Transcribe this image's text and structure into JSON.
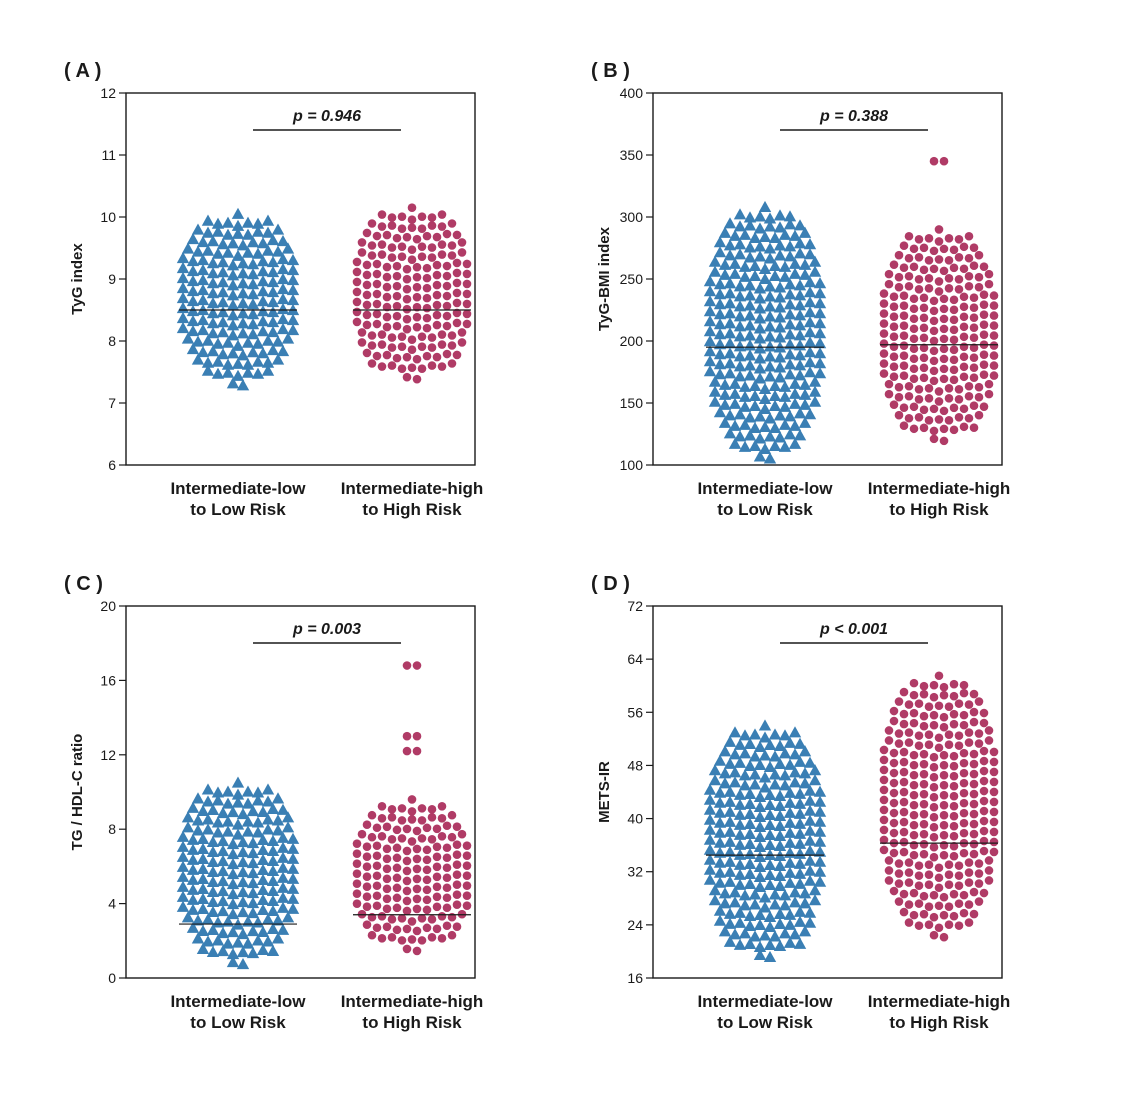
{
  "colors": {
    "group1": "#3a7fb4",
    "group2": "#b03b66",
    "axis": "#1a1a1a"
  },
  "chart_data": [
    {
      "type": "scatter",
      "panel_label": "( A )",
      "ylabel": "TyG index",
      "ylim": [
        6,
        12
      ],
      "yticks": [
        6,
        7,
        8,
        9,
        10,
        11,
        12
      ],
      "p_value": "p = 0.946",
      "categories": [
        {
          "line1": "Intermediate-low",
          "line2": "to Low Risk"
        },
        {
          "line1": "Intermediate-high",
          "line2": "to High Risk"
        }
      ],
      "series": [
        {
          "marker": "triangle",
          "min": 7.3,
          "max": 10.05,
          "median": 8.5,
          "outliers": []
        },
        {
          "marker": "circle",
          "min": 7.25,
          "max": 10.15,
          "median": 8.5,
          "outliers": []
        }
      ]
    },
    {
      "type": "scatter",
      "panel_label": "( B )",
      "ylabel": "TyG-BMI index",
      "ylim": [
        100,
        400
      ],
      "yticks": [
        100,
        150,
        200,
        250,
        300,
        350,
        400
      ],
      "p_value": "p = 0.388",
      "categories": [
        {
          "line1": "Intermediate-low",
          "line2": "to Low Risk"
        },
        {
          "line1": "Intermediate-high",
          "line2": "to High Risk"
        }
      ],
      "series": [
        {
          "marker": "triangle",
          "min": 104,
          "max": 308,
          "median": 195,
          "outliers": []
        },
        {
          "marker": "circle",
          "min": 114,
          "max": 290,
          "median": 197,
          "outliers": [
            345
          ]
        }
      ]
    },
    {
      "type": "scatter",
      "panel_label": "( C )",
      "ylabel": "TG / HDL-C ratio",
      "ylim": [
        0,
        20
      ],
      "yticks": [
        0,
        4,
        8,
        12,
        16,
        20
      ],
      "p_value": "p = 0.003",
      "categories": [
        {
          "line1": "Intermediate-low",
          "line2": "to Low Risk"
        },
        {
          "line1": "Intermediate-high",
          "line2": "to High Risk"
        }
      ],
      "series": [
        {
          "marker": "triangle",
          "min": 0.5,
          "max": 10.5,
          "median": 2.9,
          "outliers": []
        },
        {
          "marker": "circle",
          "min": 1.1,
          "max": 9.6,
          "median": 3.4,
          "outliers": [
            12.2,
            13.0,
            16.8
          ]
        }
      ]
    },
    {
      "type": "scatter",
      "panel_label": "( D )",
      "ylabel": "METS-IR",
      "ylim": [
        16,
        72
      ],
      "yticks": [
        16,
        24,
        32,
        40,
        48,
        56,
        64,
        72
      ],
      "p_value": "p < 0.001",
      "categories": [
        {
          "line1": "Intermediate-low",
          "line2": "to Low Risk"
        },
        {
          "line1": "Intermediate-high",
          "line2": "to High Risk"
        }
      ],
      "series": [
        {
          "marker": "triangle",
          "min": 18.5,
          "max": 54,
          "median": 34.5,
          "outliers": []
        },
        {
          "marker": "circle",
          "min": 21.5,
          "max": 61.5,
          "median": 36.3,
          "outliers": []
        }
      ]
    }
  ]
}
